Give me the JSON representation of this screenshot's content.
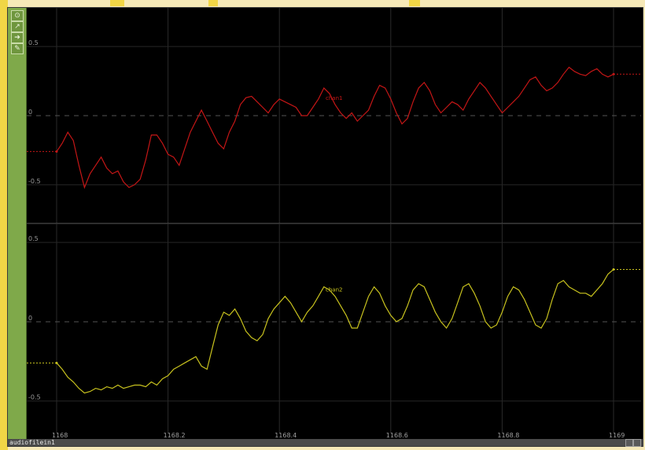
{
  "toolbar": {
    "icons": [
      "home-icon",
      "fit-icon",
      "arrow-icon",
      "pen-icon"
    ]
  },
  "chart_data": [
    {
      "type": "line",
      "title": "",
      "xlabel": "",
      "ylabel": "",
      "xlim": [
        1168,
        1169
      ],
      "ylim": [
        -0.78,
        0.78
      ],
      "x_ticks": [
        "1168",
        "1168.2",
        "1168.4",
        "1168.6",
        "1168.8",
        "1169"
      ],
      "y_ticks": [
        "0.5",
        "0",
        "-0.5"
      ],
      "grid": true,
      "series": [
        {
          "name": "chan1",
          "color": "#c41616",
          "x": [
            1168.0,
            1168.01,
            1168.02,
            1168.03,
            1168.04,
            1168.05,
            1168.06,
            1168.07,
            1168.08,
            1168.09,
            1168.1,
            1168.11,
            1168.12,
            1168.13,
            1168.14,
            1168.15,
            1168.16,
            1168.17,
            1168.18,
            1168.19,
            1168.2,
            1168.21,
            1168.22,
            1168.23,
            1168.24,
            1168.25,
            1168.26,
            1168.27,
            1168.28,
            1168.29,
            1168.3,
            1168.31,
            1168.32,
            1168.33,
            1168.34,
            1168.35,
            1168.36,
            1168.37,
            1168.38,
            1168.39,
            1168.4,
            1168.41,
            1168.42,
            1168.43,
            1168.44,
            1168.45,
            1168.46,
            1168.47,
            1168.48,
            1168.49,
            1168.5,
            1168.51,
            1168.52,
            1168.53,
            1168.54,
            1168.55,
            1168.56,
            1168.57,
            1168.58,
            1168.59,
            1168.6,
            1168.61,
            1168.62,
            1168.63,
            1168.64,
            1168.65,
            1168.66,
            1168.67,
            1168.68,
            1168.69,
            1168.7,
            1168.71,
            1168.72,
            1168.73,
            1168.74,
            1168.75,
            1168.76,
            1168.77,
            1168.78,
            1168.79,
            1168.8,
            1168.81,
            1168.82,
            1168.83,
            1168.84,
            1168.85,
            1168.86,
            1168.87,
            1168.88,
            1168.89,
            1168.9,
            1168.91,
            1168.92,
            1168.93,
            1168.94,
            1168.95,
            1168.96,
            1168.97,
            1168.98,
            1168.99,
            1169.0
          ],
          "values": [
            -0.26,
            -0.2,
            -0.12,
            -0.18,
            -0.36,
            -0.52,
            -0.42,
            -0.36,
            -0.3,
            -0.38,
            -0.42,
            -0.4,
            -0.48,
            -0.52,
            -0.5,
            -0.46,
            -0.32,
            -0.14,
            -0.14,
            -0.2,
            -0.28,
            -0.3,
            -0.36,
            -0.24,
            -0.12,
            -0.04,
            0.04,
            -0.04,
            -0.12,
            -0.2,
            -0.24,
            -0.12,
            -0.04,
            0.08,
            0.13,
            0.14,
            0.1,
            0.06,
            0.02,
            0.08,
            0.12,
            0.1,
            0.08,
            0.06,
            0.0,
            0.0,
            0.06,
            0.12,
            0.2,
            0.16,
            0.08,
            0.02,
            -0.02,
            0.02,
            -0.04,
            0.0,
            0.04,
            0.14,
            0.22,
            0.2,
            0.12,
            0.02,
            -0.06,
            -0.02,
            0.1,
            0.2,
            0.24,
            0.18,
            0.08,
            0.02,
            0.06,
            0.1,
            0.08,
            0.04,
            0.12,
            0.18,
            0.24,
            0.2,
            0.14,
            0.08,
            0.02,
            0.06,
            0.1,
            0.14,
            0.2,
            0.26,
            0.28,
            0.22,
            0.18,
            0.2,
            0.24,
            0.3,
            0.35,
            0.32,
            0.3,
            0.29,
            0.32,
            0.34,
            0.3,
            0.28,
            0.3
          ]
        }
      ]
    },
    {
      "type": "line",
      "title": "",
      "xlabel": "",
      "ylabel": "",
      "xlim": [
        1168,
        1169
      ],
      "ylim": [
        -0.7,
        0.62
      ],
      "x_ticks": [
        "1168",
        "1168.2",
        "1168.4",
        "1168.6",
        "1168.8",
        "1169"
      ],
      "y_ticks": [
        "0.5",
        "0",
        "-0.5"
      ],
      "grid": true,
      "series": [
        {
          "name": "chan2",
          "color": "#c8c21e",
          "x": [
            1168.0,
            1168.01,
            1168.02,
            1168.03,
            1168.04,
            1168.05,
            1168.06,
            1168.07,
            1168.08,
            1168.09,
            1168.1,
            1168.11,
            1168.12,
            1168.13,
            1168.14,
            1168.15,
            1168.16,
            1168.17,
            1168.18,
            1168.19,
            1168.2,
            1168.21,
            1168.22,
            1168.23,
            1168.24,
            1168.25,
            1168.26,
            1168.27,
            1168.28,
            1168.29,
            1168.3,
            1168.31,
            1168.32,
            1168.33,
            1168.34,
            1168.35,
            1168.36,
            1168.37,
            1168.38,
            1168.39,
            1168.4,
            1168.41,
            1168.42,
            1168.43,
            1168.44,
            1168.45,
            1168.46,
            1168.47,
            1168.48,
            1168.49,
            1168.5,
            1168.51,
            1168.52,
            1168.53,
            1168.54,
            1168.55,
            1168.56,
            1168.57,
            1168.58,
            1168.59,
            1168.6,
            1168.61,
            1168.62,
            1168.63,
            1168.64,
            1168.65,
            1168.66,
            1168.67,
            1168.68,
            1168.69,
            1168.7,
            1168.71,
            1168.72,
            1168.73,
            1168.74,
            1168.75,
            1168.76,
            1168.77,
            1168.78,
            1168.79,
            1168.8,
            1168.81,
            1168.82,
            1168.83,
            1168.84,
            1168.85,
            1168.86,
            1168.87,
            1168.88,
            1168.89,
            1168.9,
            1168.91,
            1168.92,
            1168.93,
            1168.94,
            1168.95,
            1168.96,
            1168.97,
            1168.98,
            1168.99,
            1169.0
          ],
          "values": [
            -0.26,
            -0.3,
            -0.35,
            -0.38,
            -0.42,
            -0.45,
            -0.44,
            -0.42,
            -0.43,
            -0.41,
            -0.42,
            -0.4,
            -0.42,
            -0.41,
            -0.4,
            -0.4,
            -0.41,
            -0.38,
            -0.4,
            -0.36,
            -0.34,
            -0.3,
            -0.28,
            -0.26,
            -0.24,
            -0.22,
            -0.28,
            -0.3,
            -0.16,
            -0.02,
            0.06,
            0.04,
            0.08,
            0.02,
            -0.06,
            -0.1,
            -0.12,
            -0.08,
            0.02,
            0.08,
            0.12,
            0.16,
            0.12,
            0.06,
            0.0,
            0.06,
            0.1,
            0.16,
            0.22,
            0.2,
            0.16,
            0.1,
            0.04,
            -0.04,
            -0.04,
            0.06,
            0.16,
            0.22,
            0.18,
            0.1,
            0.04,
            0.0,
            0.02,
            0.1,
            0.2,
            0.24,
            0.22,
            0.14,
            0.06,
            0.0,
            -0.04,
            0.02,
            0.12,
            0.22,
            0.24,
            0.18,
            0.1,
            0.0,
            -0.04,
            -0.02,
            0.06,
            0.16,
            0.22,
            0.2,
            0.14,
            0.06,
            -0.02,
            -0.04,
            0.02,
            0.14,
            0.24,
            0.26,
            0.22,
            0.2,
            0.18,
            0.18,
            0.16,
            0.2,
            0.24,
            0.3,
            0.33
          ]
        }
      ]
    }
  ],
  "status": {
    "operator_name": "audiofilein1"
  }
}
